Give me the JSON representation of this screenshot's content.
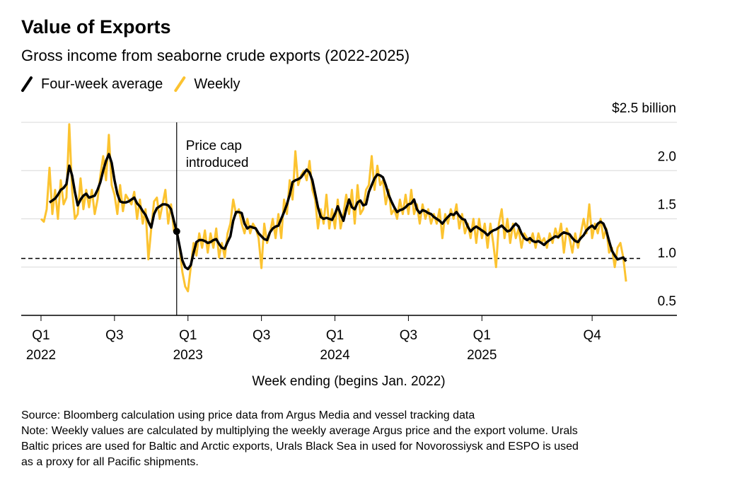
{
  "chart_data": {
    "type": "line",
    "title": "Value of Exports",
    "subtitle": "Gross income from seaborne crude exports (2022-2025)",
    "x_label": "Week ending (begins Jan. 2022)",
    "annotation": {
      "text": [
        "Price cap",
        "introduced"
      ],
      "x": 48
    },
    "reference_line": 1.09,
    "legend": "top-left",
    "grid": true,
    "xlim": [
      -7,
      225
    ],
    "xticks": [
      {
        "value": 0,
        "label": "Q1",
        "year": "2022"
      },
      {
        "value": 26,
        "label": "Q3"
      },
      {
        "value": 52,
        "label": "Q1",
        "year": "2023"
      },
      {
        "value": 78,
        "label": "Q3"
      },
      {
        "value": 104,
        "label": "Q1",
        "year": "2024"
      },
      {
        "value": 130,
        "label": "Q3"
      },
      {
        "value": 156,
        "label": "Q1",
        "year": "2025"
      },
      {
        "value": 195,
        "label": "Q4"
      }
    ],
    "ylim": [
      0.5,
      2.5
    ],
    "yticks": [
      0.5,
      {
        "value": 1.0,
        "label": "1.0"
      },
      1.5,
      {
        "value": 2.0,
        "label": "2.0"
      },
      {
        "value": 2.5,
        "label": "$2.5 billion"
      }
    ],
    "x": [
      0,
      1,
      2,
      3,
      4,
      5,
      6,
      7,
      8,
      9,
      10,
      11,
      12,
      13,
      14,
      15,
      16,
      17,
      18,
      19,
      20,
      21,
      22,
      23,
      24,
      25,
      26,
      27,
      28,
      29,
      30,
      31,
      32,
      33,
      34,
      35,
      36,
      37,
      38,
      39,
      40,
      41,
      42,
      43,
      44,
      45,
      46,
      47,
      48,
      49,
      50,
      51,
      52,
      53,
      54,
      55,
      56,
      57,
      58,
      59,
      60,
      61,
      62,
      63,
      64,
      65,
      66,
      67,
      68,
      69,
      70,
      71,
      72,
      73,
      74,
      75,
      76,
      77,
      78,
      79,
      80,
      81,
      82,
      83,
      84,
      85,
      86,
      87,
      88,
      89,
      90,
      91,
      92,
      93,
      94,
      95,
      96,
      97,
      98,
      99,
      100,
      101,
      102,
      103,
      104,
      105,
      106,
      107,
      108,
      109,
      110,
      111,
      112,
      113,
      114,
      115,
      116,
      117,
      118,
      119,
      120,
      121,
      122,
      123,
      124,
      125,
      126,
      127,
      128,
      129,
      130,
      131,
      132,
      133,
      134,
      135,
      136,
      137,
      138,
      139,
      140,
      141,
      142,
      143,
      144,
      145,
      146,
      147,
      148,
      149,
      150,
      151,
      152,
      153,
      154,
      155,
      156,
      157,
      158,
      159,
      160,
      161,
      162,
      163,
      164,
      165,
      166,
      167,
      168,
      169,
      170,
      171,
      172,
      173,
      174,
      175,
      176,
      177,
      178,
      179,
      180,
      181,
      182,
      183,
      184,
      185,
      186,
      187,
      188,
      189,
      190,
      191,
      192,
      193,
      194,
      195,
      196,
      197,
      198,
      199,
      200,
      201,
      202,
      203,
      204,
      205,
      206,
      207
    ],
    "series": [
      {
        "name": "Weekly",
        "color": "#fcc330",
        "width": 3,
        "values": [
          1.5,
          1.47,
          1.6,
          2.03,
          1.55,
          1.8,
          1.5,
          1.9,
          1.65,
          1.72,
          2.48,
          1.8,
          1.5,
          1.55,
          1.92,
          1.6,
          1.8,
          1.62,
          1.8,
          1.55,
          1.7,
          1.95,
          2.15,
          1.9,
          2.37,
          1.85,
          1.75,
          1.55,
          1.85,
          1.58,
          1.75,
          1.7,
          1.65,
          1.78,
          1.5,
          1.7,
          1.45,
          1.6,
          1.08,
          1.4,
          1.68,
          1.72,
          1.5,
          1.65,
          1.8,
          1.45,
          1.65,
          1.38,
          1.4,
          1.2,
          0.95,
          0.8,
          0.75,
          1.0,
          1.25,
          1.12,
          1.35,
          1.2,
          1.38,
          1.15,
          1.35,
          1.2,
          1.4,
          1.1,
          1.25,
          1.1,
          1.35,
          1.45,
          1.7,
          1.55,
          1.6,
          1.45,
          1.35,
          1.5,
          1.35,
          1.45,
          1.4,
          1.3,
          0.99,
          1.45,
          1.25,
          1.35,
          1.5,
          1.3,
          1.55,
          1.3,
          1.7,
          1.55,
          1.9,
          1.7,
          2.2,
          1.85,
          1.95,
          2.0,
          1.9,
          2.1,
          1.8,
          1.7,
          1.4,
          1.6,
          1.45,
          1.75,
          1.4,
          1.6,
          1.4,
          1.7,
          1.4,
          1.55,
          1.75,
          1.55,
          1.8,
          1.45,
          1.85,
          1.55,
          1.6,
          1.8,
          1.85,
          2.15,
          1.8,
          2.05,
          1.85,
          1.9,
          1.65,
          1.8,
          1.55,
          1.6,
          1.5,
          1.7,
          1.55,
          1.75,
          1.55,
          1.8,
          1.55,
          1.65,
          1.45,
          1.65,
          1.5,
          1.6,
          1.45,
          1.55,
          1.45,
          1.6,
          1.3,
          1.55,
          1.45,
          1.6,
          1.5,
          1.65,
          1.4,
          1.55,
          1.35,
          1.45,
          1.3,
          1.5,
          1.25,
          1.5,
          1.3,
          1.45,
          1.2,
          1.45,
          1.25,
          1.0,
          1.45,
          1.6,
          1.3,
          1.5,
          1.25,
          1.45,
          1.3,
          1.4,
          1.2,
          1.35,
          1.3,
          1.25,
          1.35,
          1.2,
          1.35,
          1.25,
          1.3,
          1.2,
          1.35,
          1.25,
          1.4,
          1.3,
          1.45,
          1.15,
          1.4,
          1.3,
          1.15,
          1.35,
          1.2,
          1.35,
          1.5,
          1.35,
          1.65,
          1.3,
          1.45,
          1.35,
          1.5,
          1.3,
          1.4,
          1.15,
          1.2,
          1.0,
          1.2,
          1.25,
          1.1,
          0.85
        ]
      },
      {
        "name": "Four-week average",
        "color": "#000000",
        "width": 3.5,
        "values": [
          null,
          null,
          null,
          1.67,
          1.69,
          1.71,
          1.75,
          1.8,
          1.82,
          1.86,
          2.05,
          1.95,
          1.78,
          1.64,
          1.7,
          1.74,
          1.76,
          1.72,
          1.73,
          1.74,
          1.8,
          1.88,
          2.0,
          2.1,
          2.17,
          2.08,
          1.9,
          1.76,
          1.68,
          1.67,
          1.67,
          1.68,
          1.7,
          1.72,
          1.66,
          1.63,
          1.58,
          1.54,
          1.47,
          1.41,
          1.55,
          1.61,
          1.63,
          1.65,
          1.65,
          1.64,
          1.6,
          1.48,
          1.37,
          1.22,
          1.07,
          1.0,
          0.98,
          1.02,
          1.15,
          1.26,
          1.28,
          1.28,
          1.27,
          1.25,
          1.26,
          1.28,
          1.29,
          1.24,
          1.2,
          1.19,
          1.26,
          1.32,
          1.48,
          1.57,
          1.57,
          1.56,
          1.45,
          1.4,
          1.42,
          1.41,
          1.4,
          1.35,
          1.32,
          1.29,
          1.28,
          1.36,
          1.4,
          1.42,
          1.43,
          1.5,
          1.57,
          1.65,
          1.75,
          1.88,
          1.9,
          1.91,
          1.93,
          1.97,
          2.01,
          1.98,
          1.9,
          1.76,
          1.62,
          1.52,
          1.5,
          1.51,
          1.5,
          1.49,
          1.55,
          1.63,
          1.55,
          1.48,
          1.6,
          1.7,
          1.62,
          1.6,
          1.67,
          1.69,
          1.64,
          1.65,
          1.78,
          1.85,
          1.92,
          1.96,
          1.95,
          1.93,
          1.85,
          1.75,
          1.68,
          1.62,
          1.57,
          1.59,
          1.6,
          1.62,
          1.65,
          1.66,
          1.7,
          1.6,
          1.56,
          1.59,
          1.58,
          1.56,
          1.55,
          1.52,
          1.5,
          1.48,
          1.45,
          1.49,
          1.52,
          1.55,
          1.54,
          1.57,
          1.53,
          1.5,
          1.49,
          1.42,
          1.37,
          1.4,
          1.42,
          1.4,
          1.38,
          1.36,
          1.33,
          1.36,
          1.38,
          1.39,
          1.41,
          1.43,
          1.4,
          1.37,
          1.38,
          1.42,
          1.45,
          1.42,
          1.35,
          1.3,
          1.28,
          1.3,
          1.27,
          1.26,
          1.27,
          1.25,
          1.23,
          1.26,
          1.28,
          1.3,
          1.32,
          1.31,
          1.34,
          1.36,
          1.35,
          1.34,
          1.3,
          1.27,
          1.26,
          1.3,
          1.33,
          1.38,
          1.41,
          1.43,
          1.4,
          1.45,
          1.47,
          1.45,
          1.38,
          1.27,
          1.17,
          1.12,
          1.08,
          1.09,
          1.1,
          1.06
        ]
      }
    ],
    "source": "Source: Bloomberg calculation using price data from Argus Media and vessel tracking data",
    "note": [
      "Note: Weekly values are calculated by multiplying the weekly average Argus price and the export volume. Urals",
      "Baltic prices are used for Baltic and Arctic exports, Urals Black Sea in used for Novorossiysk and ESPO is used",
      "as a proxy for all Pacific shipments."
    ]
  }
}
